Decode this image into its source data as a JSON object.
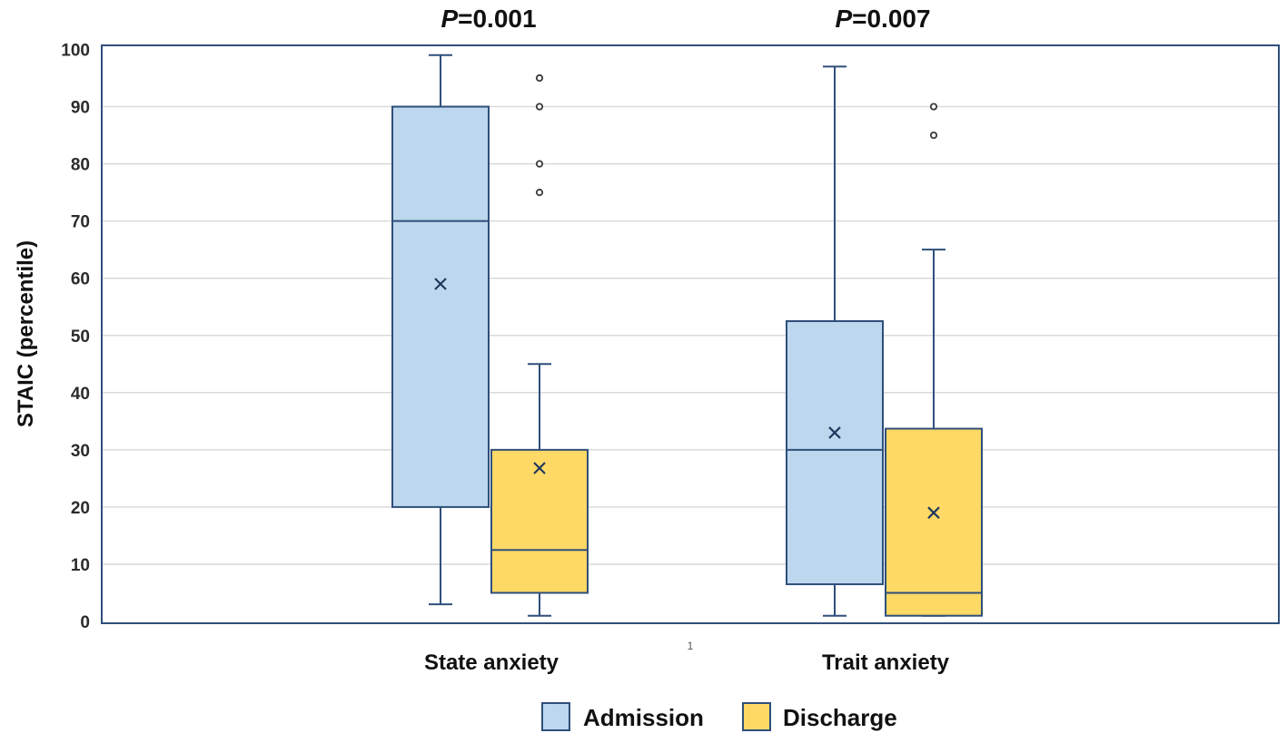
{
  "chart_data": {
    "type": "box",
    "title": "",
    "xlabel": "",
    "ylabel": "STAIC  (percentile)",
    "ylim": [
      0,
      100
    ],
    "yticks": [
      0,
      10,
      20,
      30,
      40,
      50,
      60,
      70,
      80,
      90,
      100
    ],
    "grid": true,
    "categories": [
      "State anxiety",
      "Trait anxiety"
    ],
    "p_values": [
      {
        "category": "State anxiety",
        "prefix": "P",
        "value": "=0.001"
      },
      {
        "category": "Trait anxiety",
        "prefix": "P",
        "value": "=0.007"
      }
    ],
    "stray_label": "1",
    "series": [
      {
        "name": "Admission",
        "color": "#bdd7ee",
        "stroke": "#2f4f7a",
        "boxes": [
          {
            "whisker_low": 3,
            "q1": 20,
            "median": 70,
            "q3": 90,
            "whisker_high": 99,
            "mean": 59,
            "outliers": []
          },
          {
            "whisker_low": 1,
            "q1": 6.5,
            "median": 30,
            "q3": 52.5,
            "whisker_high": 97,
            "mean": 33,
            "outliers": []
          }
        ]
      },
      {
        "name": "Discharge",
        "color": "#ffd966",
        "stroke": "#2f4f7a",
        "boxes": [
          {
            "whisker_low": 1,
            "q1": 5,
            "median": 12.5,
            "q3": 30,
            "whisker_high": 45,
            "mean": 26.8,
            "outliers": [
              75,
              80,
              90,
              95
            ]
          },
          {
            "whisker_low": 1,
            "q1": 1,
            "median": 5,
            "q3": 33.7,
            "whisker_high": 65,
            "mean": 19,
            "outliers": [
              85,
              90
            ]
          }
        ]
      }
    ],
    "legend": {
      "placement": "bottom",
      "items": [
        "Admission",
        "Discharge"
      ]
    }
  }
}
